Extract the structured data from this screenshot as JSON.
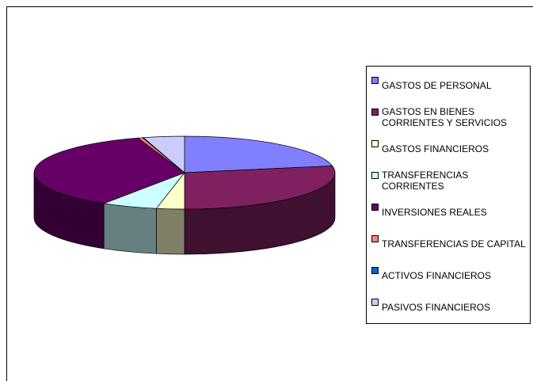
{
  "chart_data": {
    "type": "pie",
    "categories": [
      "GASTOS DE PERSONAL",
      "GASTOS EN BIENES CORRIENTES Y SERVICIOS",
      "GASTOS FINANCIEROS",
      "TRANSFERENCIAS CORRIENTES",
      "INVERSIONES REALES",
      "TRANSFERENCIAS DE CAPITAL",
      "ACTIVOS FINANCIEROS",
      "PASIVOS FINANCIEROS"
    ],
    "values": [
      22,
      28,
      3,
      6,
      36,
      0.5,
      0.1,
      4.4
    ],
    "colors": [
      "#8080ff",
      "#802060",
      "#ffffcc",
      "#ccffff",
      "#660066",
      "#ff8080",
      "#0066cc",
      "#ccccff"
    ],
    "legend": "right"
  }
}
